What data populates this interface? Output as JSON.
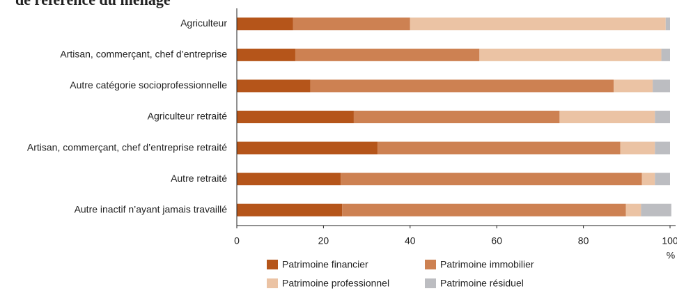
{
  "chart_data": {
    "type": "stacked_barh",
    "title": "de référence du ménage",
    "categories": [
      "Agriculteur",
      "Artisan, commerçant, chef d’entreprise",
      "Autre catégorie socioprofessionnelle",
      "Agriculteur retraité",
      "Artisan, commerçant, chef d’entreprise retraité",
      "Autre retraité",
      "Autre inactif n’ayant jamais travaillé"
    ],
    "series": [
      {
        "name": "Patrimoine financier",
        "color": "#b5551a",
        "values": [
          13,
          13.5,
          17,
          27,
          32.5,
          24,
          24.3
        ]
      },
      {
        "name": "Patrimoine immobilier",
        "color": "#cd8152",
        "values": [
          27,
          42.5,
          70,
          47.5,
          56,
          69.5,
          65.5
        ]
      },
      {
        "name": "Patrimoine professionnel",
        "color": "#ebc3a4",
        "values": [
          59,
          42,
          9,
          22,
          8,
          3,
          3.5
        ]
      },
      {
        "name": "Patrimoine résiduel",
        "color": "#bcbdc1",
        "values": [
          1,
          2,
          4,
          3.5,
          3.5,
          3.5,
          7
        ]
      }
    ],
    "xlim": [
      0,
      100
    ],
    "xticks": [
      0,
      20,
      40,
      60,
      80,
      100
    ],
    "xlabel": "%",
    "legend": "bottom"
  }
}
